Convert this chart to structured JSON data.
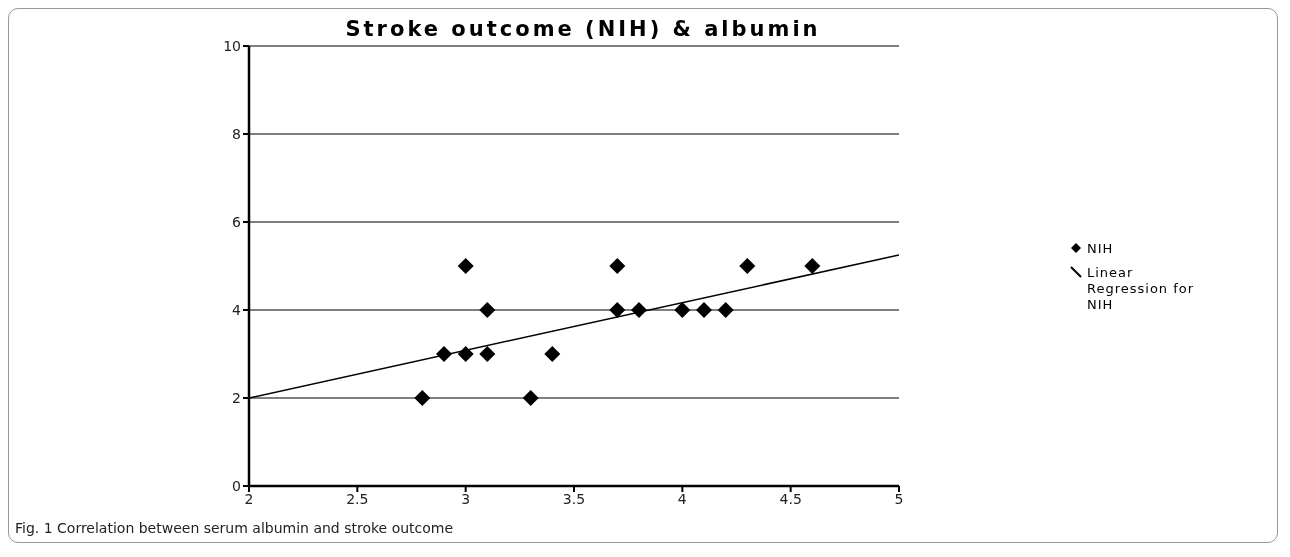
{
  "chart_data": {
    "type": "scatter",
    "title": "Stroke outcome (NIH) & albumin",
    "annotations": [
      "Fig. 1 Correlation between serum albumin and stroke outcome"
    ],
    "xlim": [
      2,
      5
    ],
    "xticks": [
      2,
      2.5,
      3,
      3.5,
      4,
      4.5,
      5
    ],
    "ylim": [
      0,
      10
    ],
    "yticks": [
      0,
      2,
      4,
      6,
      8,
      10
    ],
    "grid": "y",
    "legend": "right",
    "series": [
      {
        "name": "NIH",
        "marker": "diamond",
        "color": "#000000",
        "x": [
          2.8,
          2.9,
          3,
          3,
          3.1,
          3.1,
          3.3,
          3.4,
          3.7,
          3.7,
          3.8,
          4,
          4.1,
          4.2,
          4.3,
          4.6
        ],
        "values": [
          2,
          3,
          5,
          3,
          4,
          3,
          2,
          3,
          5,
          4,
          4,
          4,
          4,
          4,
          5,
          5
        ]
      },
      {
        "name": "Linear Regression for NIH",
        "type": "line",
        "color": "#000000",
        "x": [
          2,
          5
        ],
        "values": [
          2,
          5.25
        ]
      }
    ]
  }
}
